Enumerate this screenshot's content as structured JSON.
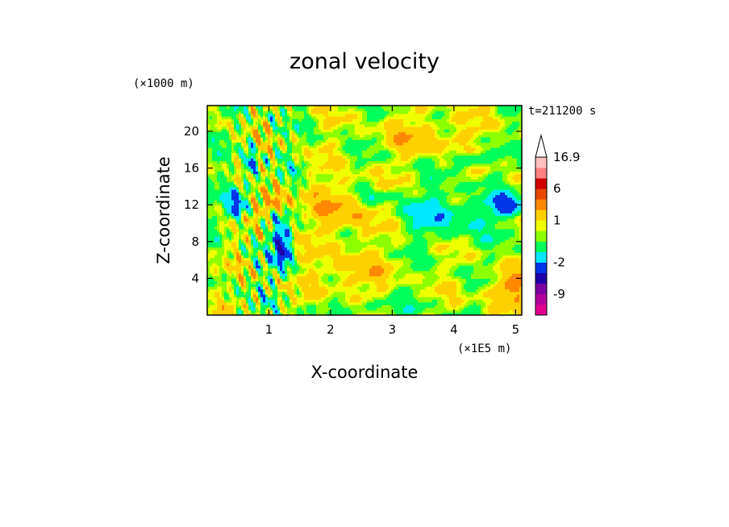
{
  "chart_data": {
    "type": "heatmap",
    "title": "zonal velocity",
    "xlabel": "X-coordinate",
    "ylabel": "Z-coordinate",
    "x_unit": "(×1E5 m)",
    "y_unit": "(×1000 m)",
    "time_label": "t=211200 s",
    "xlim": [
      0,
      5.1
    ],
    "ylim": [
      0,
      22.8
    ],
    "x_ticks": [
      1,
      2,
      3,
      4,
      5
    ],
    "y_ticks": [
      4,
      8,
      12,
      16,
      20
    ],
    "x_tick_labels": [
      "1",
      "2",
      "3",
      "4",
      "5"
    ],
    "y_tick_labels": [
      "4",
      "8",
      "12",
      "16",
      "20"
    ],
    "colorbar": {
      "max_label": "16.9",
      "levels": [
        -15,
        -12,
        -9,
        -6,
        -4,
        -2,
        -1,
        0,
        0.5,
        1,
        2,
        4,
        6,
        9,
        12,
        16.9
      ],
      "labels": [
        "16.9",
        "6",
        "1",
        "-2",
        "-9"
      ],
      "label_values": [
        16.9,
        6,
        1,
        -2,
        -9
      ],
      "colors": [
        "#e0008c",
        "#b4009b",
        "#7a009f",
        "#1e00a8",
        "#0035e8",
        "#00e8ff",
        "#00ff5a",
        "#8cff00",
        "#f0ff00",
        "#ffd000",
        "#ff8800",
        "#e84800",
        "#d00000",
        "#ff8080",
        "#ffc0c0"
      ]
    }
  }
}
